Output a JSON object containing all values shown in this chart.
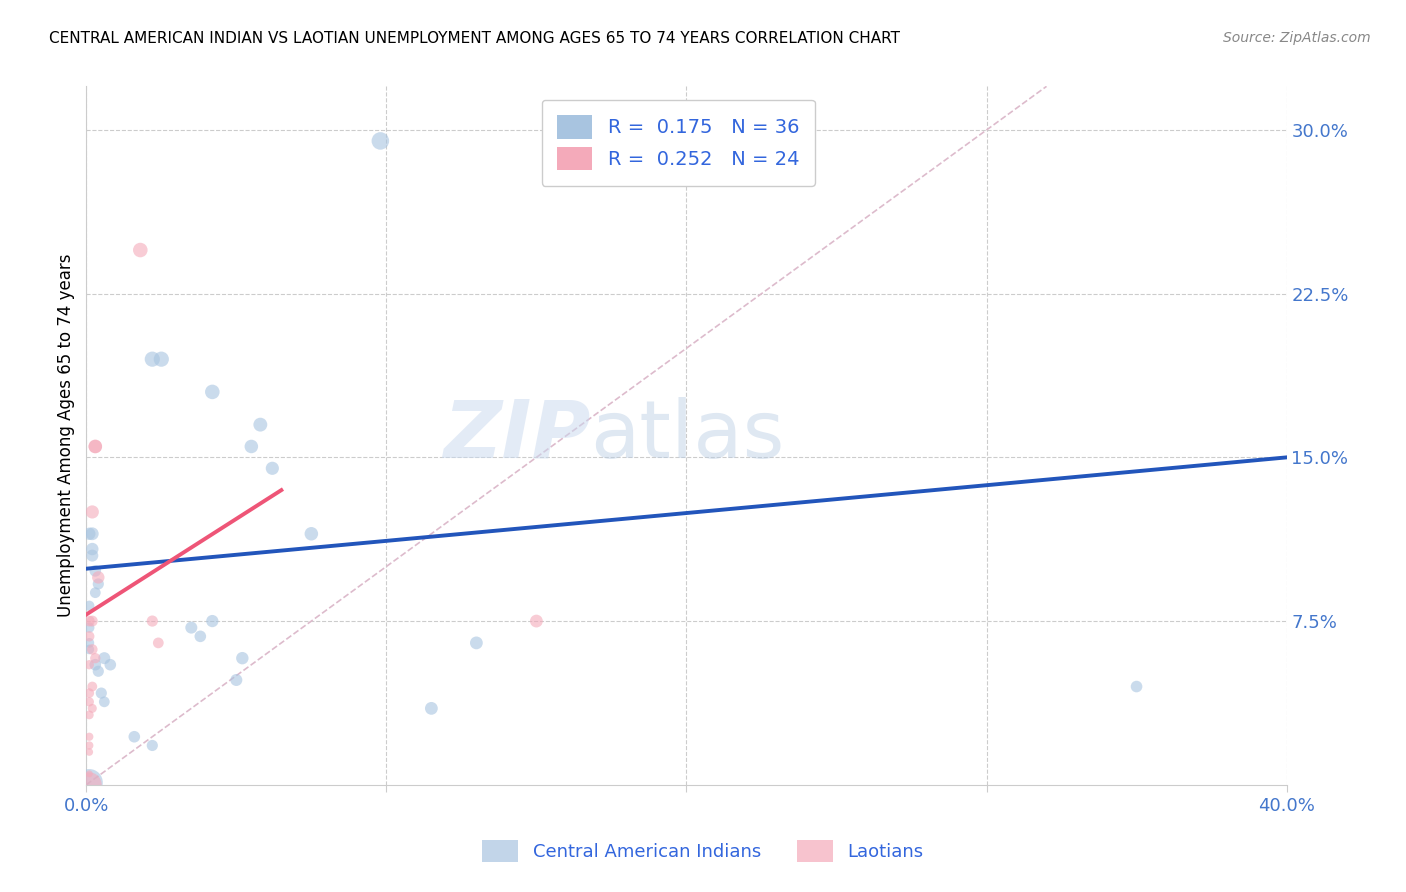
{
  "title": "CENTRAL AMERICAN INDIAN VS LAOTIAN UNEMPLOYMENT AMONG AGES 65 TO 74 YEARS CORRELATION CHART",
  "source": "Source: ZipAtlas.com",
  "ylabel": "Unemployment Among Ages 65 to 74 years",
  "xlim": [
    0.0,
    0.4
  ],
  "ylim": [
    0.0,
    0.32
  ],
  "xticks": [
    0.0,
    0.1,
    0.2,
    0.3,
    0.4
  ],
  "xticklabels": [
    "0.0%",
    "",
    "",
    "",
    "40.0%"
  ],
  "yticks": [
    0.075,
    0.15,
    0.225,
    0.3
  ],
  "yticklabels": [
    "7.5%",
    "15.0%",
    "22.5%",
    "30.0%"
  ],
  "blue_R": 0.175,
  "blue_N": 36,
  "pink_R": 0.252,
  "pink_N": 24,
  "blue_color": "#A8C4E0",
  "pink_color": "#F4AABA",
  "trend_blue_color": "#2255BB",
  "trend_pink_color": "#EE5577",
  "diagonal_color": "#DDBBCC",
  "background_color": "#FFFFFF",
  "tick_color": "#4477CC",
  "legend_text_color": "#3366DD",
  "blue_points_x": [
    0.098,
    0.022,
    0.025,
    0.042,
    0.058,
    0.055,
    0.062,
    0.001,
    0.002,
    0.003,
    0.004,
    0.003,
    0.001,
    0.002,
    0.002,
    0.001,
    0.001,
    0.001,
    0.035,
    0.038,
    0.042,
    0.075,
    0.13,
    0.052,
    0.05,
    0.35,
    0.005,
    0.006,
    0.115,
    0.016,
    0.022,
    0.001,
    0.003,
    0.004,
    0.006,
    0.008
  ],
  "blue_points_y": [
    0.295,
    0.195,
    0.195,
    0.18,
    0.165,
    0.155,
    0.145,
    0.115,
    0.105,
    0.098,
    0.092,
    0.088,
    0.082,
    0.115,
    0.108,
    0.072,
    0.065,
    0.062,
    0.072,
    0.068,
    0.075,
    0.115,
    0.065,
    0.058,
    0.048,
    0.045,
    0.042,
    0.038,
    0.035,
    0.022,
    0.018,
    0.001,
    0.055,
    0.052,
    0.058,
    0.055
  ],
  "pink_points_x": [
    0.018,
    0.002,
    0.003,
    0.004,
    0.003,
    0.022,
    0.024,
    0.002,
    0.003,
    0.002,
    0.001,
    0.001,
    0.002,
    0.001,
    0.002,
    0.15,
    0.001,
    0.001,
    0.001,
    0.001,
    0.001,
    0.001,
    0.001,
    0.001
  ],
  "pink_points_y": [
    0.245,
    0.125,
    0.155,
    0.095,
    0.155,
    0.075,
    0.065,
    0.062,
    0.058,
    0.045,
    0.042,
    0.038,
    0.035,
    0.032,
    0.075,
    0.075,
    0.075,
    0.068,
    0.055,
    0.022,
    0.015,
    0.005,
    0.0,
    0.018
  ],
  "blue_sizes": [
    160,
    120,
    120,
    110,
    100,
    95,
    90,
    80,
    75,
    70,
    65,
    60,
    55,
    85,
    80,
    55,
    50,
    48,
    75,
    70,
    78,
    95,
    85,
    80,
    75,
    70,
    65,
    60,
    85,
    70,
    65,
    380,
    70,
    65,
    75,
    70
  ],
  "pink_sizes": [
    110,
    90,
    95,
    80,
    95,
    65,
    60,
    58,
    55,
    50,
    48,
    45,
    42,
    40,
    62,
    85,
    60,
    55,
    45,
    35,
    30,
    25,
    320,
    35
  ],
  "blue_trend_x": [
    0.0,
    0.4
  ],
  "blue_trend_y": [
    0.099,
    0.15
  ],
  "pink_trend_x": [
    0.0,
    0.065
  ],
  "pink_trend_y": [
    0.078,
    0.135
  ]
}
